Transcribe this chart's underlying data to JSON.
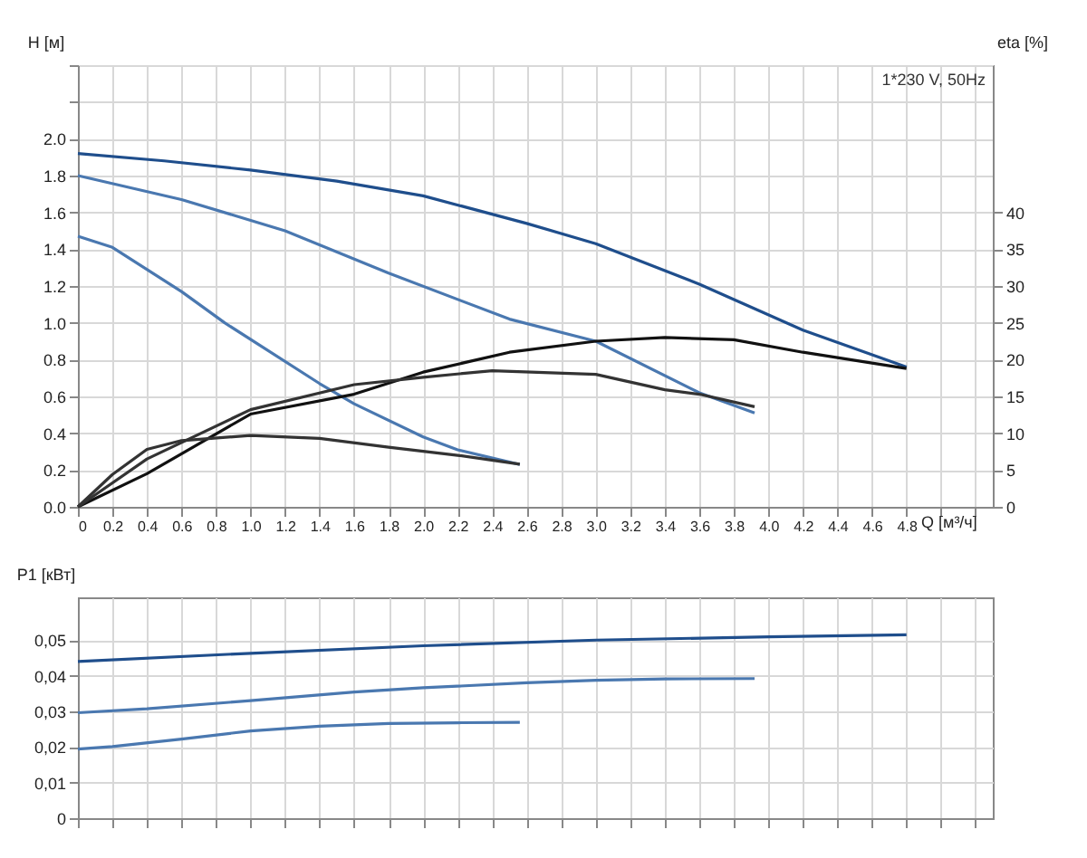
{
  "chart_data": [
    {
      "type": "line",
      "xlabel": "Q [м³/ч]",
      "ylabel": "H [м]",
      "y2label": "eta [%]",
      "grid": true,
      "legend": false,
      "marker": "none",
      "line_style": "solid",
      "annotations": [
        "1*230 V, 50Hz"
      ],
      "xlim": [
        0,
        5.3
      ],
      "xticks": [
        {
          "value": 0,
          "label": "0"
        },
        {
          "value": 0.2,
          "label": "0.2"
        },
        {
          "value": 0.4,
          "label": "0.4"
        },
        {
          "value": 0.6,
          "label": "0.6"
        },
        {
          "value": 0.8,
          "label": "0.8"
        },
        {
          "value": 1,
          "label": "1.0"
        },
        {
          "value": 1.2,
          "label": "1.2"
        },
        {
          "value": 1.4,
          "label": "1.4"
        },
        {
          "value": 1.6,
          "label": "1.6"
        },
        {
          "value": 1.8,
          "label": "1.8"
        },
        {
          "value": 2,
          "label": "2.0"
        },
        {
          "value": 2.2,
          "label": "2.2"
        },
        {
          "value": 2.4,
          "label": "2.4"
        },
        {
          "value": 2.6,
          "label": "2.6"
        },
        {
          "value": 2.8,
          "label": "2.8"
        },
        {
          "value": 3,
          "label": "3.0"
        },
        {
          "value": 3.2,
          "label": "3.2"
        },
        {
          "value": 3.4,
          "label": "3.4"
        },
        {
          "value": 3.6,
          "label": "3.6"
        },
        {
          "value": 3.8,
          "label": "3.8"
        },
        {
          "value": 4,
          "label": "4.0"
        },
        {
          "value": 4.2,
          "label": "4.2"
        },
        {
          "value": 4.4,
          "label": "4.4"
        },
        {
          "value": 4.6,
          "label": "4.6"
        },
        {
          "value": 4.8,
          "label": "4.8"
        },
        {
          "value": 5,
          "label": null
        },
        {
          "value": 5.2,
          "label": null
        }
      ],
      "ylim": [
        0,
        2.4
      ],
      "yticks": [
        {
          "value": 0,
          "label": "0.0"
        },
        {
          "value": 0.2,
          "label": "0.2"
        },
        {
          "value": 0.4,
          "label": "0.4"
        },
        {
          "value": 0.6,
          "label": "0.6"
        },
        {
          "value": 0.8,
          "label": "0.8"
        },
        {
          "value": 1,
          "label": "1.0"
        },
        {
          "value": 1.2,
          "label": "1.2"
        },
        {
          "value": 1.4,
          "label": "1.4"
        },
        {
          "value": 1.6,
          "label": "1.6"
        },
        {
          "value": 1.8,
          "label": "1.8"
        },
        {
          "value": 2,
          "label": "2.0"
        },
        {
          "value": 2.2,
          "label": null
        },
        {
          "value": 2.4,
          "label": null
        }
      ],
      "y2lim": [
        0,
        60
      ],
      "y2ticks": [
        0,
        5,
        10,
        15,
        20,
        25,
        30,
        35,
        40
      ],
      "series": [
        {
          "color": "#1f4e8c",
          "x": [
            0,
            0.5,
            1.0,
            1.5,
            2.0,
            2.6,
            3.0,
            3.6,
            4.2,
            4.8
          ],
          "values": [
            1.92,
            1.88,
            1.83,
            1.77,
            1.69,
            1.54,
            1.43,
            1.21,
            0.96,
            0.76
          ]
        },
        {
          "color": "#4a78b0",
          "x": [
            0,
            0.6,
            1.2,
            1.8,
            2.5,
            3.0,
            3.6,
            3.92
          ],
          "values": [
            1.8,
            1.67,
            1.5,
            1.27,
            1.02,
            0.9,
            0.62,
            0.51
          ]
        },
        {
          "color": "#4a78b0",
          "x": [
            0,
            0.2,
            0.6,
            0.85,
            1.4,
            1.6,
            2.0,
            2.2,
            2.56
          ],
          "values": [
            1.47,
            1.41,
            1.17,
            1.0,
            0.67,
            0.56,
            0.38,
            0.31,
            0.23
          ]
        },
        {
          "color": "#111111",
          "axis": "y2",
          "x": [
            0,
            0.4,
            1.0,
            1.6,
            2.0,
            2.5,
            3.0,
            3.4,
            3.8,
            4.2,
            4.8
          ],
          "values": [
            0,
            4.5,
            12.6,
            15.3,
            18.3,
            21,
            22.5,
            23,
            22.7,
            21,
            18.8
          ]
        },
        {
          "color": "#333333",
          "axis": "y2",
          "x": [
            0,
            0.4,
            1.0,
            1.6,
            2.0,
            2.4,
            3.0,
            3.4,
            3.6,
            3.92
          ],
          "values": [
            0,
            6.5,
            13.2,
            16.6,
            17.6,
            18.5,
            18,
            15.9,
            15.3,
            13.6
          ]
        },
        {
          "color": "#333333",
          "axis": "y2",
          "x": [
            0,
            0.2,
            0.4,
            0.6,
            1.0,
            1.4,
            1.8,
            2.2,
            2.56
          ],
          "values": [
            0,
            4.4,
            7.8,
            9,
            9.7,
            9.3,
            8.1,
            7,
            5.8
          ]
        }
      ]
    },
    {
      "type": "line",
      "ylabel": "P1 [кВт]",
      "grid": true,
      "legend": false,
      "marker": "none",
      "line_style": "solid",
      "tick_labels": "y",
      "xlim": [
        0,
        5.3
      ],
      "xticks": [
        0,
        0.2,
        0.4,
        0.6,
        0.8,
        1,
        1.2,
        1.4,
        1.6,
        1.8,
        2,
        2.2,
        2.4,
        2.6,
        2.8,
        3,
        3.2,
        3.4,
        3.6,
        3.8,
        4,
        4.2,
        4.4,
        4.6,
        4.8,
        5,
        5.2
      ],
      "ylim": [
        0,
        0.062
      ],
      "yticks": [
        {
          "value": 0,
          "label": "0"
        },
        {
          "value": 0.01,
          "label": "0,01"
        },
        {
          "value": 0.02,
          "label": "0,02"
        },
        {
          "value": 0.03,
          "label": "0,03"
        },
        {
          "value": 0.04,
          "label": "0,04"
        },
        {
          "value": 0.05,
          "label": "0,05"
        }
      ],
      "series": [
        {
          "color": "#1f4e8c",
          "x": [
            0,
            1.0,
            2.0,
            3.0,
            4.0,
            4.8
          ],
          "values": [
            0.044,
            0.0463,
            0.0484,
            0.05,
            0.0509,
            0.0515
          ]
        },
        {
          "color": "#4a78b0",
          "x": [
            0,
            0.4,
            1.0,
            1.6,
            2.0,
            2.6,
            3.0,
            3.4,
            3.92
          ],
          "values": [
            0.0296,
            0.0307,
            0.033,
            0.0354,
            0.0366,
            0.038,
            0.0387,
            0.0391,
            0.0392
          ]
        },
        {
          "color": "#4a78b0",
          "x": [
            0,
            0.2,
            0.6,
            1.0,
            1.4,
            1.8,
            2.2,
            2.56
          ],
          "values": [
            0.0194,
            0.0201,
            0.0222,
            0.0245,
            0.0258,
            0.0266,
            0.0268,
            0.0269
          ]
        }
      ]
    }
  ]
}
